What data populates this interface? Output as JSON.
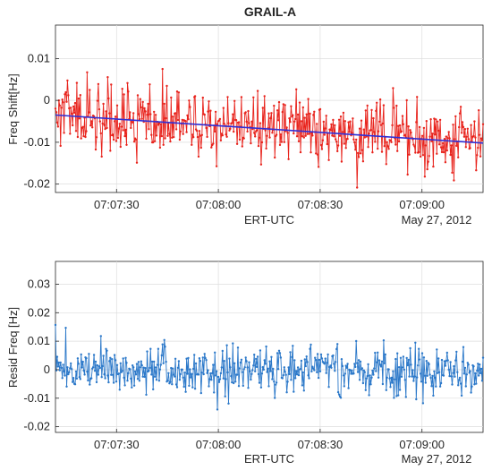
{
  "chart_data": [
    {
      "type": "line",
      "title": "GRAIL-A",
      "xlabel": "ERT-UTC",
      "ylabel": "Freq Shift[Hz]",
      "date_label": "May 27, 2012",
      "x_start": "07:07:12",
      "x_end": "07:09:18",
      "x_ticks": [
        "07:07:30",
        "07:08:00",
        "07:08:30",
        "07:09:00"
      ],
      "ylim": [
        -0.022,
        0.018
      ],
      "y_ticks": [
        -0.02,
        -0.01,
        0,
        0.01
      ],
      "y_tick_labels": [
        "-0.02",
        "-0.01",
        "0",
        "0.01"
      ],
      "grid": true,
      "series": [
        {
          "color": "#e8231c",
          "marker": "dot",
          "samples": 500,
          "x_range": [
            "07:07:12",
            "07:09:18"
          ],
          "trend_start": -0.0035,
          "trend_end": -0.0102,
          "noise_sd": 0.0042
        },
        {
          "color": "#2f2fd6",
          "kind": "fit",
          "x": [
            "07:07:12",
            "07:09:18"
          ],
          "y": [
            -0.0035,
            -0.0102
          ]
        }
      ]
    },
    {
      "type": "line",
      "xlabel": "ERT-UTC",
      "ylabel": "Resid Freq [Hz]",
      "date_label": "May 27, 2012",
      "x_start": "07:07:12",
      "x_end": "07:09:18",
      "x_ticks": [
        "07:07:30",
        "07:08:00",
        "07:08:30",
        "07:09:00"
      ],
      "ylim": [
        -0.022,
        0.038
      ],
      "y_ticks": [
        -0.02,
        -0.01,
        0,
        0.01,
        0.02,
        0.03
      ],
      "y_tick_labels": [
        "-0.02",
        "-0.01",
        "0",
        "0.01",
        "0.02",
        "0.03"
      ],
      "grid": true,
      "series": [
        {
          "color": "#2b78c9",
          "marker": "dot",
          "samples": 500,
          "x_range": [
            "07:07:12",
            "07:09:18"
          ],
          "trend_start": 0,
          "trend_end": 0,
          "noise_sd": 0.0042
        }
      ]
    }
  ]
}
